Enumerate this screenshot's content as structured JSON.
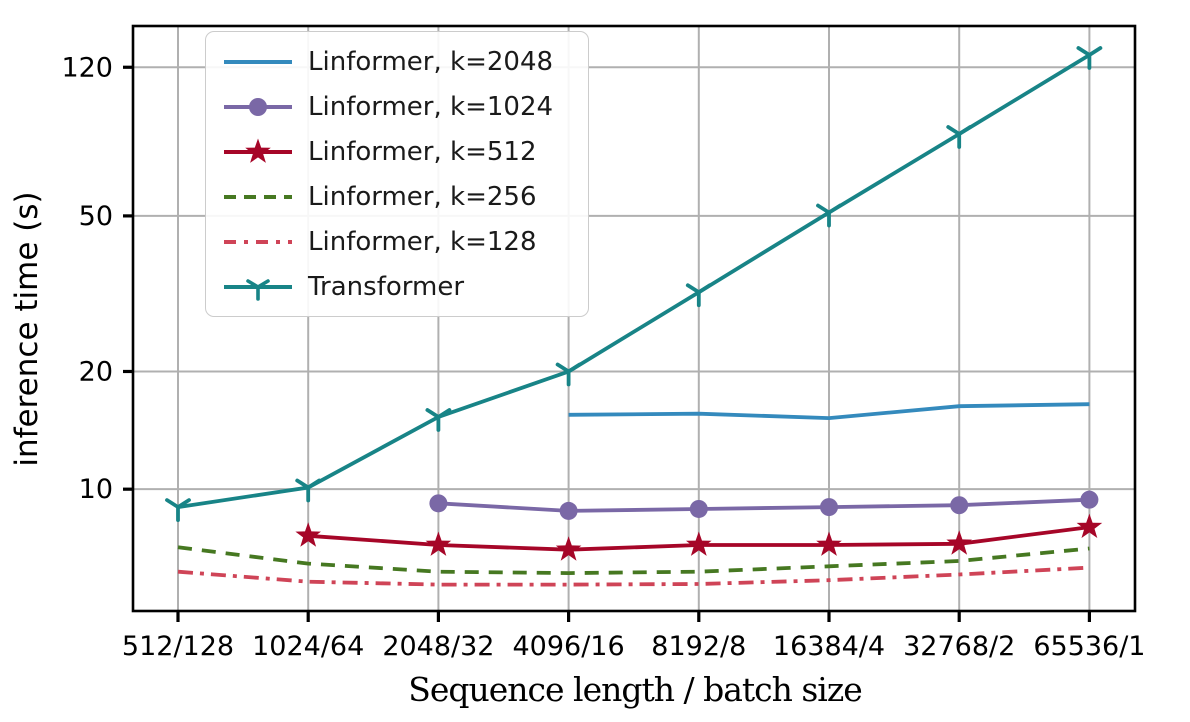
{
  "figure": {
    "ylabel": "inference time (s)",
    "xlabel": "Sequence length / batch size"
  },
  "chart_data": {
    "type": "line",
    "title": "",
    "xlabel": "Sequence length / batch size",
    "ylabel": "inference time (s)",
    "x_categories": [
      "512/128",
      "1024/64",
      "2048/32",
      "4096/16",
      "8192/8",
      "16384/4",
      "32768/2",
      "65536/1"
    ],
    "y_scale": "log",
    "y_ticks": [
      10,
      20,
      50,
      120
    ],
    "y_tick_labels": [
      "10",
      "20",
      "50",
      "120"
    ],
    "ylim": [
      4.88,
      153
    ],
    "grid": true,
    "grid_color": "#b0b0b0",
    "frame_color": "#000000",
    "legend_position": "upper-left",
    "series": [
      {
        "name": "Linformer, k=2048",
        "color": "#348ABD",
        "line": "solid",
        "marker": "none",
        "values": [
          null,
          null,
          null,
          15.5,
          15.6,
          15.2,
          16.3,
          16.5
        ]
      },
      {
        "name": "Linformer, k=1024",
        "color": "#7A68A6",
        "line": "solid",
        "marker": "circle",
        "values": [
          null,
          null,
          9.2,
          8.8,
          8.9,
          9.0,
          9.1,
          9.4
        ]
      },
      {
        "name": "Linformer, k=512",
        "color": "#A60628",
        "line": "solid",
        "marker": "star",
        "values": [
          null,
          7.6,
          7.2,
          7.0,
          7.2,
          7.2,
          7.25,
          8.0
        ]
      },
      {
        "name": "Linformer, k=256",
        "color": "#467821",
        "line": "dashed",
        "marker": "none",
        "values": [
          7.1,
          6.45,
          6.15,
          6.1,
          6.15,
          6.35,
          6.55,
          7.05
        ]
      },
      {
        "name": "Linformer, k=128",
        "color": "#CF4457",
        "line": "dashdot",
        "marker": "none",
        "values": [
          6.15,
          5.8,
          5.7,
          5.7,
          5.72,
          5.85,
          6.05,
          6.3
        ]
      },
      {
        "name": "Transformer",
        "color": "#188487",
        "line": "solid",
        "marker": "tri-down",
        "values": [
          9.0,
          10.1,
          15.3,
          20.0,
          31.9,
          51.0,
          81.0,
          129.0
        ]
      }
    ]
  }
}
